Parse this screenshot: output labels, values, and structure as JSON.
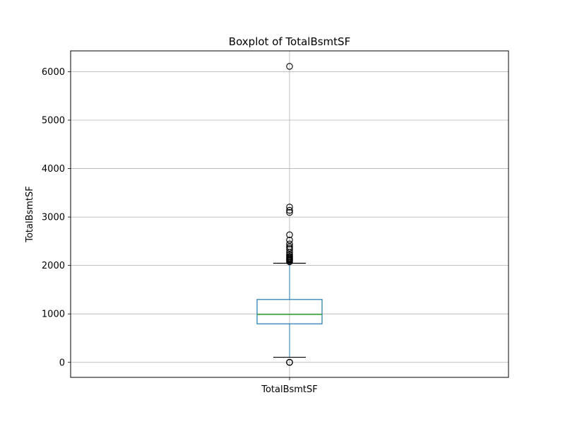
{
  "chart_data": {
    "type": "box",
    "title": "Boxplot of TotalBsmtSF",
    "xlabel": "",
    "ylabel": "TotalBsmtSF",
    "categories": [
      "TotalBsmtSF"
    ],
    "ylim": [
      -310,
      6430
    ],
    "yticks": [
      0,
      1000,
      2000,
      3000,
      4000,
      5000,
      6000
    ],
    "grid": true,
    "colors": {
      "box": "#1f77b4",
      "median": "#2ca02c",
      "cap": "#000000",
      "flier": "#000000",
      "grid": "#b0b0b0"
    },
    "box": {
      "q1": 795,
      "median": 991,
      "q3": 1298,
      "whisker_low": 105,
      "whisker_high": 2046,
      "outliers": [
        0,
        0,
        0,
        0,
        2076,
        2097,
        2110,
        2121,
        2136,
        2153,
        2171,
        2189,
        2217,
        2223,
        2271,
        2330,
        2360,
        2392,
        2444,
        2524,
        2633,
        3094,
        3138,
        3206,
        6110
      ]
    }
  }
}
